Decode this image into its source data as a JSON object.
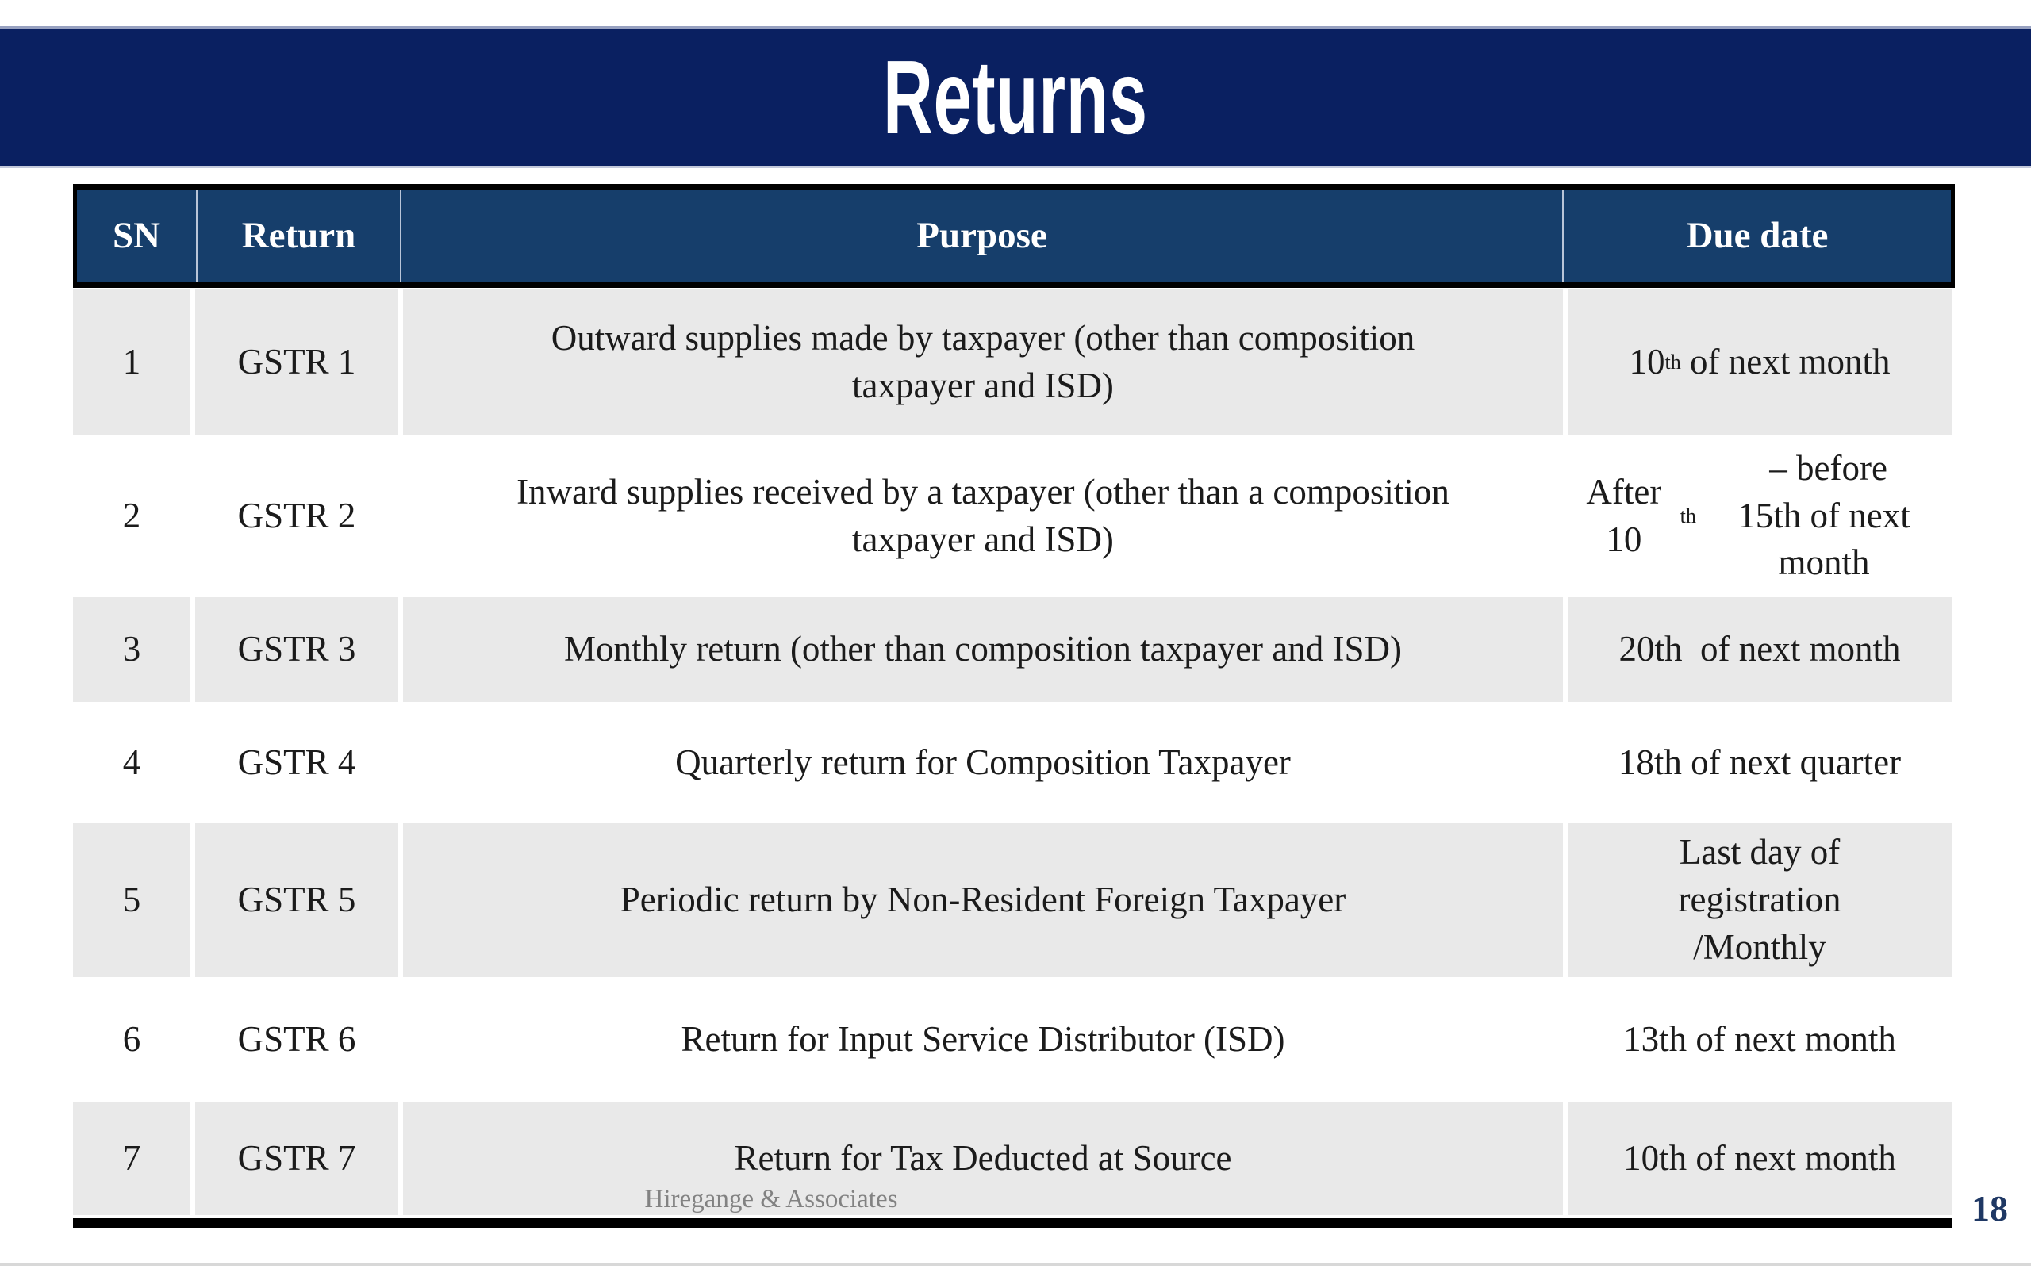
{
  "slide": {
    "title": "Returns",
    "footer": "Hiregange & Associates",
    "page_number": "18"
  },
  "colors": {
    "title_bar_bg": "#0A2061",
    "table_header_bg": "#163E6B",
    "shaded_row_bg": "#E9E9E9",
    "header_text": "#FFFFFF",
    "body_text": "#1B1B1B",
    "footer_text": "#828282",
    "page_number_text": "#1F3864",
    "border_black": "#000000"
  },
  "table": {
    "headers": [
      "SN",
      "Return",
      "Purpose",
      "Due date"
    ],
    "rows": [
      {
        "sn": "1",
        "return": "GSTR 1",
        "purpose": "Outward supplies made by taxpayer (other than composition\ntaxpayer and ISD)",
        "due": "10^th^ of next month"
      },
      {
        "sn": "2",
        "return": "GSTR 2",
        "purpose": "Inward supplies received by a taxpayer (other than a composition\ntaxpayer and ISD)",
        "due": "After 10^th^ – before\n15th of next month"
      },
      {
        "sn": "3",
        "return": "GSTR 3",
        "purpose": "Monthly return (other than composition taxpayer and ISD)",
        "due": "20th  of next month"
      },
      {
        "sn": "4",
        "return": "GSTR 4",
        "purpose": "Quarterly return for Composition Taxpayer",
        "due": "18th of next quarter"
      },
      {
        "sn": "5",
        "return": "GSTR 5",
        "purpose": "Periodic return by Non-Resident Foreign Taxpayer",
        "due": "Last day of\nregistration\n/Monthly"
      },
      {
        "sn": "6",
        "return": "GSTR 6",
        "purpose": "Return for Input Service Distributor (ISD)",
        "due": "13th of next month"
      },
      {
        "sn": "7",
        "return": "GSTR 7",
        "purpose": "Return for Tax Deducted at Source",
        "due": "10th of next month"
      }
    ]
  }
}
